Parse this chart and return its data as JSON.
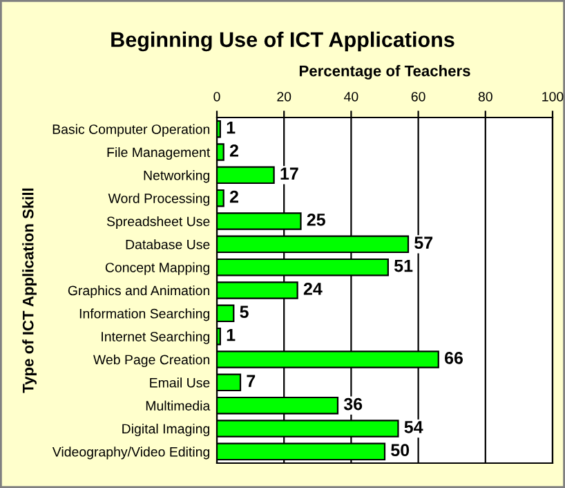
{
  "chart_data": {
    "type": "bar",
    "orientation": "horizontal",
    "title": "Beginning Use of ICT Applications",
    "xlabel": "Percentage of Teachers",
    "ylabel": "Type of ICT Application Skill",
    "categories": [
      "Basic Computer Operation",
      "File Management",
      "Networking",
      "Word Processing",
      "Spreadsheet Use",
      "Database Use",
      "Concept Mapping",
      "Graphics and Animation",
      "Information Searching",
      "Internet Searching",
      "Web Page Creation",
      "Email Use",
      "Multimedia",
      "Digital Imaging",
      "Videography/Video Editing"
    ],
    "values": [
      1,
      2,
      17,
      2,
      25,
      57,
      51,
      24,
      5,
      1,
      66,
      7,
      36,
      54,
      50
    ],
    "color": "#00ff00",
    "xlim": [
      0,
      100
    ],
    "xticks": [
      0,
      20,
      40,
      60,
      80,
      100
    ],
    "grid": "x",
    "data_labels": true,
    "legend": false
  }
}
